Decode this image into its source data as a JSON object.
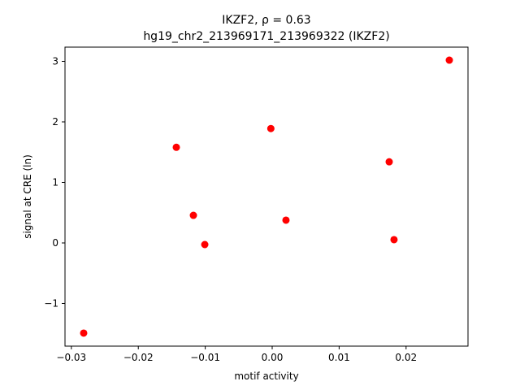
{
  "chart_data": {
    "type": "scatter",
    "title": "IKZF2, ρ = 0.63",
    "subtitle": "hg19_chr2_213969171_213969322 (IKZF2)",
    "x_label": "motif activity",
    "y_label": "signal at CRE (ln)",
    "color": "#ff0000",
    "x": [
      0.02646,
      -0.0002,
      -0.01432,
      0.01748,
      -0.01177,
      0.00206,
      -0.01007,
      0.0182,
      -0.02816
    ],
    "values": [
      3.02,
      1.89,
      1.58,
      1.34,
      0.456,
      0.376,
      -0.027,
      0.054,
      -1.49
    ],
    "xlim": [
      -0.03095,
      0.02925
    ],
    "ylim": [
      -1.705,
      3.235
    ],
    "xticks": [
      {
        "value": -0.03,
        "label": "−0.03"
      },
      {
        "value": -0.02,
        "label": "−0.02"
      },
      {
        "value": -0.01,
        "label": "−0.01"
      },
      {
        "value": 0,
        "label": "0.00"
      },
      0.01,
      0.02
    ],
    "yticks": [
      {
        "value": -1,
        "label": "−1"
      },
      0,
      1,
      2,
      3
    ]
  }
}
